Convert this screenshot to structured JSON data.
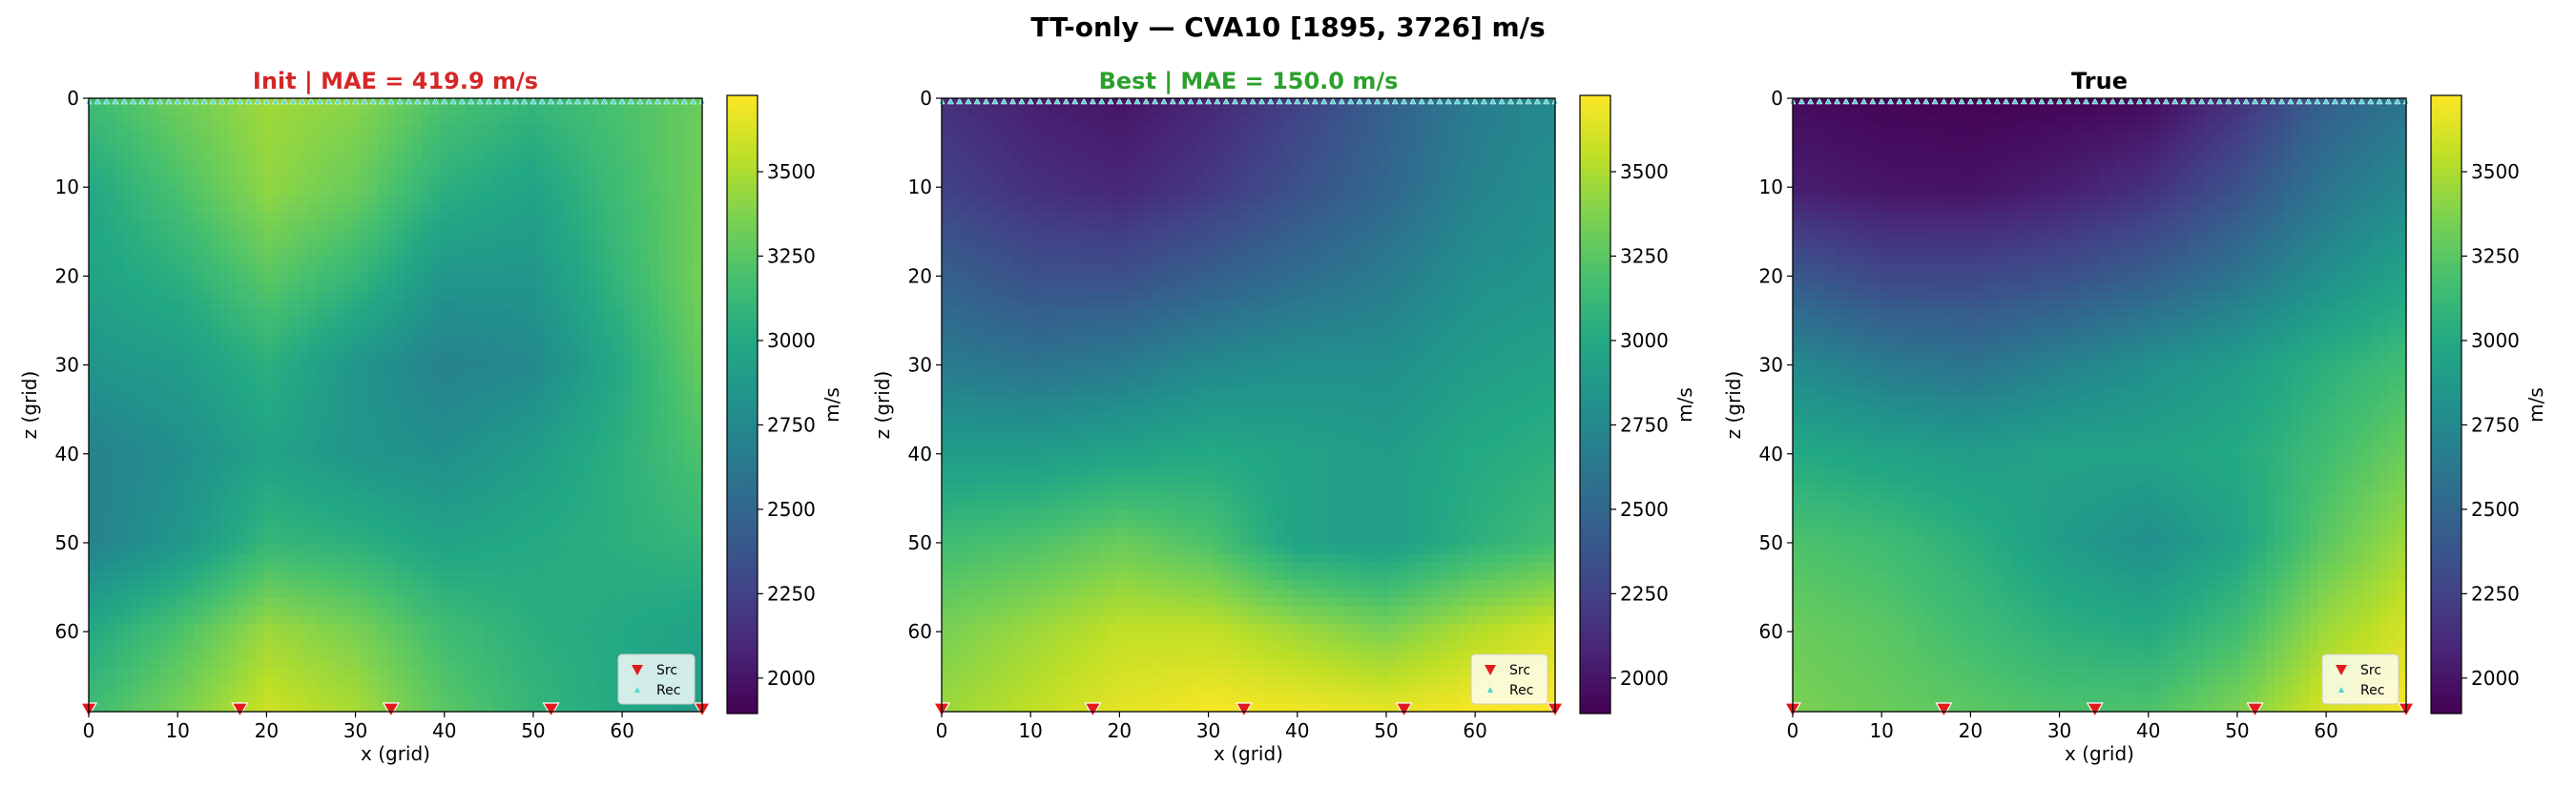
{
  "figure": {
    "suptitle": "TT-only — CVA10 [1895, 3726] m/s",
    "background": "#ffffff"
  },
  "chart_data": [
    {
      "type": "heatmap",
      "title": "Init  |  MAE = 419.9 m/s",
      "title_color": "#d62728",
      "xlabel": "x (grid)",
      "ylabel": "z (grid)",
      "colorbar_label": "m/s",
      "colormap": "viridis",
      "vlim": [
        1895,
        3726
      ],
      "xlim": [
        0,
        69
      ],
      "ylim": [
        69,
        0
      ],
      "xticks": [
        0,
        10,
        20,
        30,
        40,
        50,
        60
      ],
      "yticks": [
        0,
        10,
        20,
        30,
        40,
        50,
        60
      ],
      "colorbar_ticks": [
        2000,
        2250,
        2500,
        2750,
        3000,
        3250,
        3500
      ],
      "legend": {
        "position": "lower-right",
        "entries": [
          "Src",
          "Rec"
        ]
      },
      "sources_x": [
        0,
        17,
        34,
        52,
        69
      ],
      "receivers": "row z = 0, every grid column",
      "grid": false,
      "field_samples": {
        "z": [
          0,
          10,
          20,
          30,
          40,
          50,
          60,
          69
        ],
        "x": [
          0,
          10,
          20,
          30,
          40,
          50,
          60,
          69
        ],
        "values": [
          [
            3150,
            3320,
            3460,
            3400,
            3200,
            3100,
            3200,
            3300
          ],
          [
            3000,
            3200,
            3420,
            3300,
            3050,
            2950,
            3150,
            3320
          ],
          [
            2950,
            3050,
            3250,
            3100,
            2850,
            2850,
            3100,
            3330
          ],
          [
            2850,
            2900,
            3050,
            2850,
            2700,
            2750,
            3000,
            3280
          ],
          [
            2700,
            2800,
            2950,
            2850,
            2800,
            2900,
            3050,
            3200
          ],
          [
            2700,
            2850,
            3100,
            3050,
            2950,
            3000,
            3050,
            3100
          ],
          [
            3000,
            3200,
            3450,
            3350,
            3150,
            3050,
            3000,
            2950
          ],
          [
            3150,
            3350,
            3580,
            3480,
            3250,
            3100,
            3000,
            2900
          ]
        ]
      }
    },
    {
      "type": "heatmap",
      "title": "Best  |  MAE = 150.0 m/s",
      "title_color": "#2ca02c",
      "xlabel": "x (grid)",
      "ylabel": "z (grid)",
      "colorbar_label": "m/s",
      "colormap": "viridis",
      "vlim": [
        1895,
        3726
      ],
      "xlim": [
        0,
        69
      ],
      "ylim": [
        69,
        0
      ],
      "xticks": [
        0,
        10,
        20,
        30,
        40,
        50,
        60
      ],
      "yticks": [
        0,
        10,
        20,
        30,
        40,
        50,
        60
      ],
      "colorbar_ticks": [
        2000,
        2250,
        2500,
        2750,
        3000,
        3250,
        3500
      ],
      "legend": {
        "position": "lower-right",
        "entries": [
          "Src",
          "Rec"
        ]
      },
      "sources_x": [
        0,
        17,
        34,
        52,
        69
      ],
      "receivers": "row z = 0, every grid column",
      "grid": false,
      "field_samples": {
        "z": [
          0,
          10,
          20,
          30,
          40,
          50,
          60,
          69
        ],
        "x": [
          0,
          10,
          20,
          30,
          40,
          50,
          60,
          69
        ],
        "values": [
          [
            2150,
            2050,
            2000,
            2100,
            2250,
            2450,
            2650,
            2750
          ],
          [
            2250,
            2150,
            2100,
            2200,
            2350,
            2500,
            2700,
            2800
          ],
          [
            2450,
            2350,
            2350,
            2450,
            2550,
            2650,
            2800,
            2850
          ],
          [
            2650,
            2600,
            2650,
            2750,
            2800,
            2800,
            2900,
            2950
          ],
          [
            2900,
            2900,
            2950,
            3000,
            2950,
            2900,
            3000,
            3050
          ],
          [
            3150,
            3200,
            3300,
            3200,
            2950,
            2900,
            3050,
            3150
          ],
          [
            3350,
            3450,
            3550,
            3550,
            3450,
            3350,
            3500,
            3600
          ],
          [
            3450,
            3550,
            3650,
            3700,
            3680,
            3650,
            3700,
            3726
          ]
        ]
      }
    },
    {
      "type": "heatmap",
      "title": "True",
      "title_color": "#000000",
      "xlabel": "x (grid)",
      "ylabel": "z (grid)",
      "colorbar_label": "m/s",
      "colormap": "viridis",
      "vlim": [
        1895,
        3726
      ],
      "xlim": [
        0,
        69
      ],
      "ylim": [
        69,
        0
      ],
      "xticks": [
        0,
        10,
        20,
        30,
        40,
        50,
        60
      ],
      "yticks": [
        0,
        10,
        20,
        30,
        40,
        50,
        60
      ],
      "colorbar_ticks": [
        2000,
        2250,
        2500,
        2750,
        3000,
        3250,
        3500
      ],
      "legend": {
        "position": "lower-right",
        "entries": [
          "Src",
          "Rec"
        ]
      },
      "sources_x": [
        0,
        17,
        34,
        52,
        69
      ],
      "receivers": "row z = 0, every grid column",
      "grid": false,
      "field_samples": {
        "z": [
          0,
          10,
          20,
          30,
          40,
          50,
          60,
          69
        ],
        "x": [
          0,
          10,
          20,
          30,
          40,
          50,
          60,
          69
        ],
        "values": [
          [
            1950,
            1920,
            1910,
            1920,
            1950,
            2150,
            2450,
            2600
          ],
          [
            2050,
            2000,
            1990,
            2050,
            2150,
            2350,
            2600,
            2750
          ],
          [
            2400,
            2300,
            2300,
            2350,
            2450,
            2600,
            2800,
            2950
          ],
          [
            2750,
            2650,
            2600,
            2700,
            2800,
            2900,
            3050,
            3150
          ],
          [
            3000,
            2950,
            2900,
            2950,
            2950,
            3000,
            3150,
            3300
          ],
          [
            3200,
            3150,
            3050,
            2900,
            2800,
            2950,
            3250,
            3450
          ],
          [
            3300,
            3250,
            3150,
            3050,
            3000,
            3150,
            3450,
            3600
          ],
          [
            3350,
            3300,
            3250,
            3200,
            3200,
            3350,
            3600,
            3700
          ]
        ]
      }
    }
  ]
}
